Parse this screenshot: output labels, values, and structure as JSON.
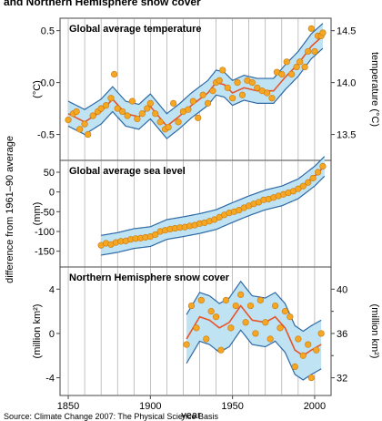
{
  "header": {
    "title": "and Northern Hemisphere snow cover"
  },
  "source_text": "Source: Climate Change 2007: The Physical Science Basis",
  "shared": {
    "xlabel": "year",
    "ylabel": "difference from 1961–90 average",
    "xticks": [
      1850,
      1900,
      1950,
      2000
    ],
    "xlim": [
      1845,
      2010
    ]
  },
  "colors": {
    "band": "#bfe3f2",
    "band_edge": "#2f6aa5",
    "points": "#f5a623",
    "smooth": "#e8542a",
    "grid": "#9a9a9a"
  },
  "chart_data": [
    {
      "type": "scatter",
      "title": "Global average temperature",
      "ylabel_left": "(°C)",
      "ylabel_right": "temperature (°C)",
      "ylim": [
        -0.75,
        0.62
      ],
      "yticks_left": [
        0.5,
        0.0,
        -0.5
      ],
      "yticks_left_labels": [
        "0.5",
        "0.0",
        "-0.5"
      ],
      "yticks_right": [
        0.5,
        0.0,
        -0.5
      ],
      "yticks_right_labels": [
        "14.5",
        "14.0",
        "13.5"
      ],
      "smooth": {
        "x": [
          1850,
          1860,
          1870,
          1877,
          1885,
          1893,
          1900,
          1910,
          1918,
          1925,
          1935,
          1940,
          1945,
          1950,
          1957,
          1965,
          1975,
          1982,
          1990,
          1998,
          2005
        ],
        "y": [
          -0.3,
          -0.38,
          -0.28,
          -0.16,
          -0.3,
          -0.33,
          -0.23,
          -0.42,
          -0.32,
          -0.22,
          -0.1,
          0.0,
          -0.02,
          -0.1,
          -0.05,
          -0.08,
          -0.08,
          0.05,
          0.18,
          0.35,
          0.45
        ]
      },
      "band_halfwidth": 0.12,
      "points": {
        "x": [
          1850,
          1853,
          1855,
          1857,
          1860,
          1862,
          1865,
          1868,
          1870,
          1873,
          1876,
          1878,
          1880,
          1883,
          1886,
          1889,
          1892,
          1895,
          1898,
          1900,
          1903,
          1906,
          1909,
          1911,
          1914,
          1917,
          1920,
          1923,
          1926,
          1929,
          1932,
          1935,
          1938,
          1940,
          1942,
          1944,
          1947,
          1950,
          1953,
          1956,
          1959,
          1962,
          1965,
          1968,
          1971,
          1974,
          1977,
          1980,
          1983,
          1986,
          1989,
          1991,
          1994,
          1996,
          1998,
          2000,
          2002,
          2004,
          2005
        ],
        "y": [
          -0.36,
          -0.3,
          -0.28,
          -0.45,
          -0.4,
          -0.5,
          -0.32,
          -0.28,
          -0.25,
          -0.22,
          -0.15,
          0.08,
          -0.25,
          -0.28,
          -0.32,
          -0.18,
          -0.35,
          -0.3,
          -0.25,
          -0.2,
          -0.3,
          -0.38,
          -0.45,
          -0.43,
          -0.2,
          -0.38,
          -0.28,
          -0.26,
          -0.18,
          -0.34,
          -0.12,
          -0.2,
          -0.08,
          0.0,
          0.02,
          0.12,
          -0.05,
          -0.15,
          0.0,
          -0.12,
          0.02,
          0.0,
          -0.05,
          -0.08,
          -0.1,
          -0.15,
          0.1,
          0.08,
          0.2,
          0.08,
          0.15,
          0.2,
          0.15,
          0.3,
          0.52,
          0.3,
          0.45,
          0.45,
          0.48
        ]
      }
    },
    {
      "type": "scatter",
      "title": "Global average sea level",
      "ylabel_left": "(mm)",
      "ylim": [
        -190,
        80
      ],
      "yticks_left": [
        50,
        0,
        -50,
        -100,
        -150
      ],
      "yticks_left_labels": [
        "50",
        "0",
        "-50",
        "-100",
        "-150"
      ],
      "smooth": {
        "x": [
          1870,
          1880,
          1890,
          1900,
          1910,
          1920,
          1930,
          1940,
          1950,
          1960,
          1970,
          1980,
          1990,
          2000,
          2006
        ],
        "y": [
          -135,
          -128,
          -118,
          -113,
          -95,
          -88,
          -80,
          -70,
          -52,
          -35,
          -20,
          -10,
          8,
          40,
          65
        ]
      },
      "band_halfwidth": 25,
      "points": {
        "x": [
          1870,
          1873,
          1876,
          1879,
          1882,
          1885,
          1888,
          1891,
          1894,
          1897,
          1900,
          1903,
          1906,
          1909,
          1912,
          1915,
          1918,
          1921,
          1924,
          1927,
          1930,
          1933,
          1936,
          1939,
          1942,
          1945,
          1948,
          1951,
          1954,
          1957,
          1960,
          1963,
          1966,
          1969,
          1972,
          1975,
          1978,
          1981,
          1984,
          1987,
          1990,
          1993,
          1996,
          1999,
          2002,
          2005
        ],
        "y": [
          -135,
          -130,
          -133,
          -128,
          -125,
          -124,
          -120,
          -118,
          -117,
          -115,
          -113,
          -108,
          -100,
          -97,
          -94,
          -92,
          -90,
          -89,
          -86,
          -84,
          -80,
          -78,
          -74,
          -70,
          -64,
          -58,
          -53,
          -50,
          -46,
          -40,
          -35,
          -30,
          -26,
          -20,
          -18,
          -14,
          -10,
          -6,
          -2,
          2,
          8,
          15,
          24,
          35,
          50,
          65
        ]
      }
    },
    {
      "type": "scatter",
      "title": "Northern Hemisphere snow cover",
      "ylabel_left": "(million km²)",
      "ylabel_right": "(million km²)",
      "ylim": [
        -5.6,
        6
      ],
      "yticks_left": [
        4,
        0,
        -4
      ],
      "yticks_left_labels": [
        "4",
        "0",
        "-4"
      ],
      "yticks_right": [
        4,
        0,
        -4
      ],
      "yticks_right_labels": [
        "40",
        "36",
        "32"
      ],
      "yticks_right_minor": [
        2,
        -2
      ],
      "smooth": {
        "x": [
          1922,
          1930,
          1936,
          1942,
          1948,
          1955,
          1962,
          1970,
          1976,
          1982,
          1988,
          1993,
          1998,
          2004
        ],
        "y": [
          -0.5,
          1.5,
          1.2,
          0.5,
          1.0,
          2.5,
          1.2,
          1.0,
          1.5,
          0.5,
          -1.5,
          -2.0,
          -1.5,
          -1.0
        ]
      },
      "band_halfwidth": 2.2,
      "points": {
        "x": [
          1922,
          1925,
          1928,
          1931,
          1934,
          1937,
          1940,
          1943,
          1946,
          1949,
          1952,
          1955,
          1958,
          1961,
          1964,
          1967,
          1970,
          1973,
          1976,
          1979,
          1982,
          1985,
          1988,
          1990,
          1993,
          1996,
          1998,
          2001,
          2004
        ],
        "y": [
          -1.0,
          2.5,
          0.5,
          3.0,
          -0.5,
          2.0,
          1.5,
          -1.5,
          3.0,
          0.5,
          2.5,
          3.5,
          1.0,
          2.5,
          0.0,
          3.0,
          1.0,
          -0.5,
          2.5,
          0.5,
          2.0,
          1.5,
          -3.0,
          -0.5,
          -2.0,
          -1.0,
          -4.0,
          -1.5,
          0.0
        ]
      }
    }
  ]
}
